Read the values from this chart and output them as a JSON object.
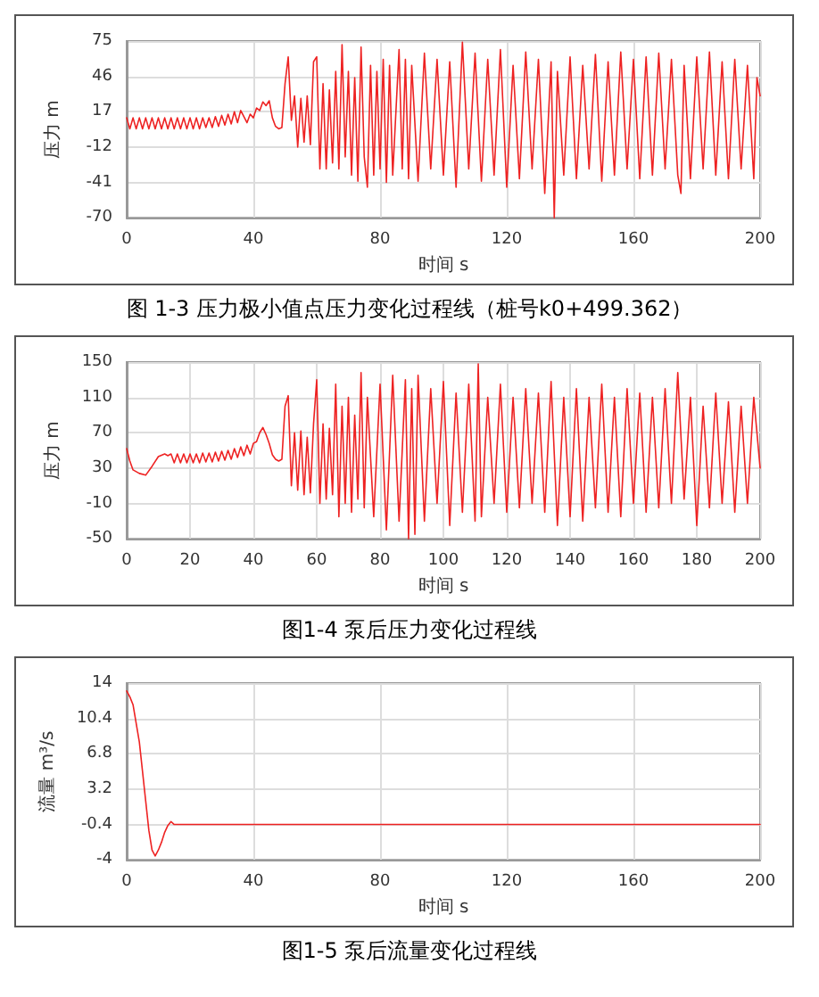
{
  "chart_data": [
    {
      "type": "line",
      "xlabel": "时间 s",
      "ylabel": "压力 m",
      "annotations": [
        "图 1-3 压力极小值点压力变化过程线（桩号k0+499.362）"
      ],
      "xlim": [
        0,
        200
      ],
      "xticks": [
        0,
        40,
        80,
        120,
        160,
        200
      ],
      "ylim": [
        -70,
        75
      ],
      "yticks": [
        -70,
        -41,
        -12,
        17,
        46,
        75
      ],
      "grid": true,
      "marker": "none",
      "line_style": "solid",
      "series": [
        {
          "color": "#ee2222",
          "x": [
            0,
            1,
            2,
            3,
            4,
            5,
            6,
            7,
            8,
            9,
            10,
            11,
            12,
            13,
            14,
            15,
            16,
            17,
            18,
            19,
            20,
            21,
            22,
            23,
            24,
            25,
            26,
            27,
            28,
            29,
            30,
            31,
            32,
            33,
            34,
            35,
            36,
            38,
            39,
            40,
            41,
            42,
            43,
            44,
            45,
            46,
            47,
            48,
            49,
            50,
            51,
            52,
            53,
            54,
            55,
            56,
            57,
            58,
            59,
            60,
            61,
            62,
            63,
            64,
            65,
            66,
            67,
            68,
            69,
            70,
            71,
            72,
            73,
            74,
            75,
            76,
            77,
            78,
            79,
            80,
            81,
            82,
            83,
            84,
            86,
            87,
            88,
            89,
            90,
            92,
            94,
            96,
            98,
            100,
            102,
            104,
            106,
            108,
            110,
            112,
            114,
            116,
            118,
            120,
            122,
            124,
            126,
            128,
            130,
            132,
            134,
            135,
            136,
            138,
            140,
            142,
            144,
            146,
            148,
            150,
            152,
            154,
            156,
            158,
            160,
            162,
            164,
            166,
            168,
            170,
            172,
            174,
            175,
            176,
            178,
            180,
            182,
            184,
            186,
            188,
            190,
            192,
            194,
            196,
            198,
            199,
            200
          ],
          "values": [
            12,
            3,
            12,
            3,
            12,
            3,
            12,
            3,
            12,
            3,
            12,
            3,
            12,
            3,
            12,
            3,
            12,
            3,
            12,
            3,
            12,
            3,
            12,
            3,
            12,
            4,
            12,
            4,
            13,
            5,
            14,
            6,
            15,
            7,
            17,
            8,
            18,
            8,
            15,
            12,
            20,
            18,
            25,
            22,
            26,
            12,
            5,
            3,
            4,
            40,
            62,
            10,
            30,
            -12,
            28,
            -8,
            30,
            -10,
            58,
            62,
            -30,
            40,
            -30,
            35,
            -25,
            50,
            -30,
            72,
            -20,
            50,
            -35,
            45,
            -40,
            70,
            -20,
            -45,
            55,
            -35,
            50,
            -30,
            60,
            -41,
            55,
            -35,
            68,
            -30,
            60,
            -38,
            55,
            -40,
            65,
            -30,
            60,
            -35,
            58,
            -45,
            74,
            -30,
            65,
            -40,
            60,
            -35,
            68,
            -45,
            55,
            -38,
            66,
            -30,
            60,
            -50,
            58,
            -70,
            50,
            -35,
            62,
            -38,
            55,
            -30,
            64,
            -40,
            58,
            -35,
            66,
            -30,
            60,
            -38,
            62,
            -35,
            65,
            -30,
            60,
            -35,
            -50,
            55,
            -38,
            62,
            -30,
            66,
            -35,
            58,
            -38,
            60,
            -30,
            55,
            -38,
            45,
            30
          ]
        }
      ]
    },
    {
      "type": "line",
      "xlabel": "时间 s",
      "ylabel": "压力 m",
      "annotations": [
        "图1-4 泵后压力变化过程线"
      ],
      "xlim": [
        0,
        200
      ],
      "xticks": [
        0,
        20,
        40,
        60,
        80,
        100,
        120,
        140,
        160,
        180,
        200
      ],
      "ylim": [
        -50,
        150
      ],
      "yticks": [
        -50,
        -10,
        30,
        70,
        110,
        150
      ],
      "grid": true,
      "marker": "none",
      "line_style": "solid",
      "series": [
        {
          "color": "#ee2222",
          "x": [
            0,
            1,
            2,
            4,
            6,
            8,
            10,
            12,
            13,
            14,
            15,
            16,
            17,
            18,
            19,
            20,
            21,
            22,
            23,
            24,
            25,
            26,
            27,
            28,
            29,
            30,
            31,
            32,
            33,
            34,
            35,
            36,
            37,
            38,
            39,
            40,
            41,
            42,
            43,
            44,
            45,
            46,
            47,
            48,
            49,
            50,
            51,
            52,
            53,
            54,
            55,
            56,
            57,
            58,
            59,
            60,
            61,
            62,
            63,
            64,
            65,
            66,
            67,
            68,
            69,
            70,
            71,
            72,
            73,
            74,
            75,
            76,
            78,
            80,
            82,
            84,
            86,
            88,
            89,
            90,
            91,
            92,
            94,
            96,
            98,
            100,
            102,
            104,
            106,
            108,
            110,
            111,
            112,
            114,
            116,
            118,
            120,
            122,
            124,
            126,
            128,
            130,
            132,
            134,
            136,
            138,
            140,
            142,
            144,
            146,
            148,
            150,
            152,
            154,
            156,
            158,
            160,
            162,
            164,
            166,
            168,
            170,
            172,
            174,
            176,
            178,
            180,
            182,
            184,
            186,
            188,
            190,
            192,
            194,
            196,
            198,
            200
          ],
          "values": [
            52,
            38,
            28,
            24,
            22,
            32,
            43,
            46,
            44,
            46,
            36,
            46,
            36,
            46,
            36,
            46,
            36,
            46,
            36,
            47,
            37,
            47,
            37,
            48,
            38,
            49,
            39,
            50,
            40,
            52,
            42,
            54,
            44,
            56,
            46,
            58,
            60,
            70,
            76,
            68,
            58,
            45,
            40,
            38,
            40,
            100,
            112,
            10,
            70,
            5,
            72,
            0,
            65,
            2,
            80,
            130,
            -10,
            80,
            -5,
            75,
            0,
            125,
            -25,
            100,
            -10,
            110,
            -20,
            90,
            -5,
            138,
            -15,
            110,
            -25,
            125,
            -40,
            135,
            -30,
            130,
            -50,
            120,
            -45,
            135,
            -30,
            120,
            -10,
            128,
            -35,
            115,
            -20,
            125,
            -30,
            148,
            -25,
            110,
            -10,
            125,
            -20,
            110,
            -15,
            120,
            -10,
            115,
            -20,
            128,
            -35,
            110,
            -25,
            120,
            -30,
            110,
            -15,
            125,
            -20,
            110,
            -25,
            120,
            -10,
            115,
            -20,
            110,
            -15,
            120,
            -10,
            138,
            -5,
            110,
            -35,
            100,
            -15,
            115,
            -10,
            105,
            -20,
            100,
            -10,
            110,
            30
          ]
        }
      ]
    },
    {
      "type": "line",
      "xlabel": "时间 s",
      "ylabel": "流量 m³/s",
      "annotations": [
        "图1-5 泵后流量变化过程线"
      ],
      "xlim": [
        0,
        200
      ],
      "xticks": [
        0,
        40,
        80,
        120,
        160,
        200
      ],
      "ylim": [
        -4,
        14
      ],
      "yticks": [
        -4,
        -0.4,
        3.2,
        6.8,
        10.4,
        14
      ],
      "grid": true,
      "marker": "none",
      "line_style": "solid",
      "series": [
        {
          "color": "#ee2222",
          "x": [
            0,
            1,
            2,
            4,
            6,
            7,
            8,
            9,
            10,
            11,
            12,
            13,
            14,
            15,
            20,
            200
          ],
          "values": [
            13.2,
            12.6,
            11.8,
            8,
            2,
            -1,
            -3,
            -3.6,
            -3,
            -2.2,
            -1.2,
            -0.5,
            -0.1,
            -0.4,
            -0.4,
            -0.4
          ]
        }
      ]
    }
  ]
}
